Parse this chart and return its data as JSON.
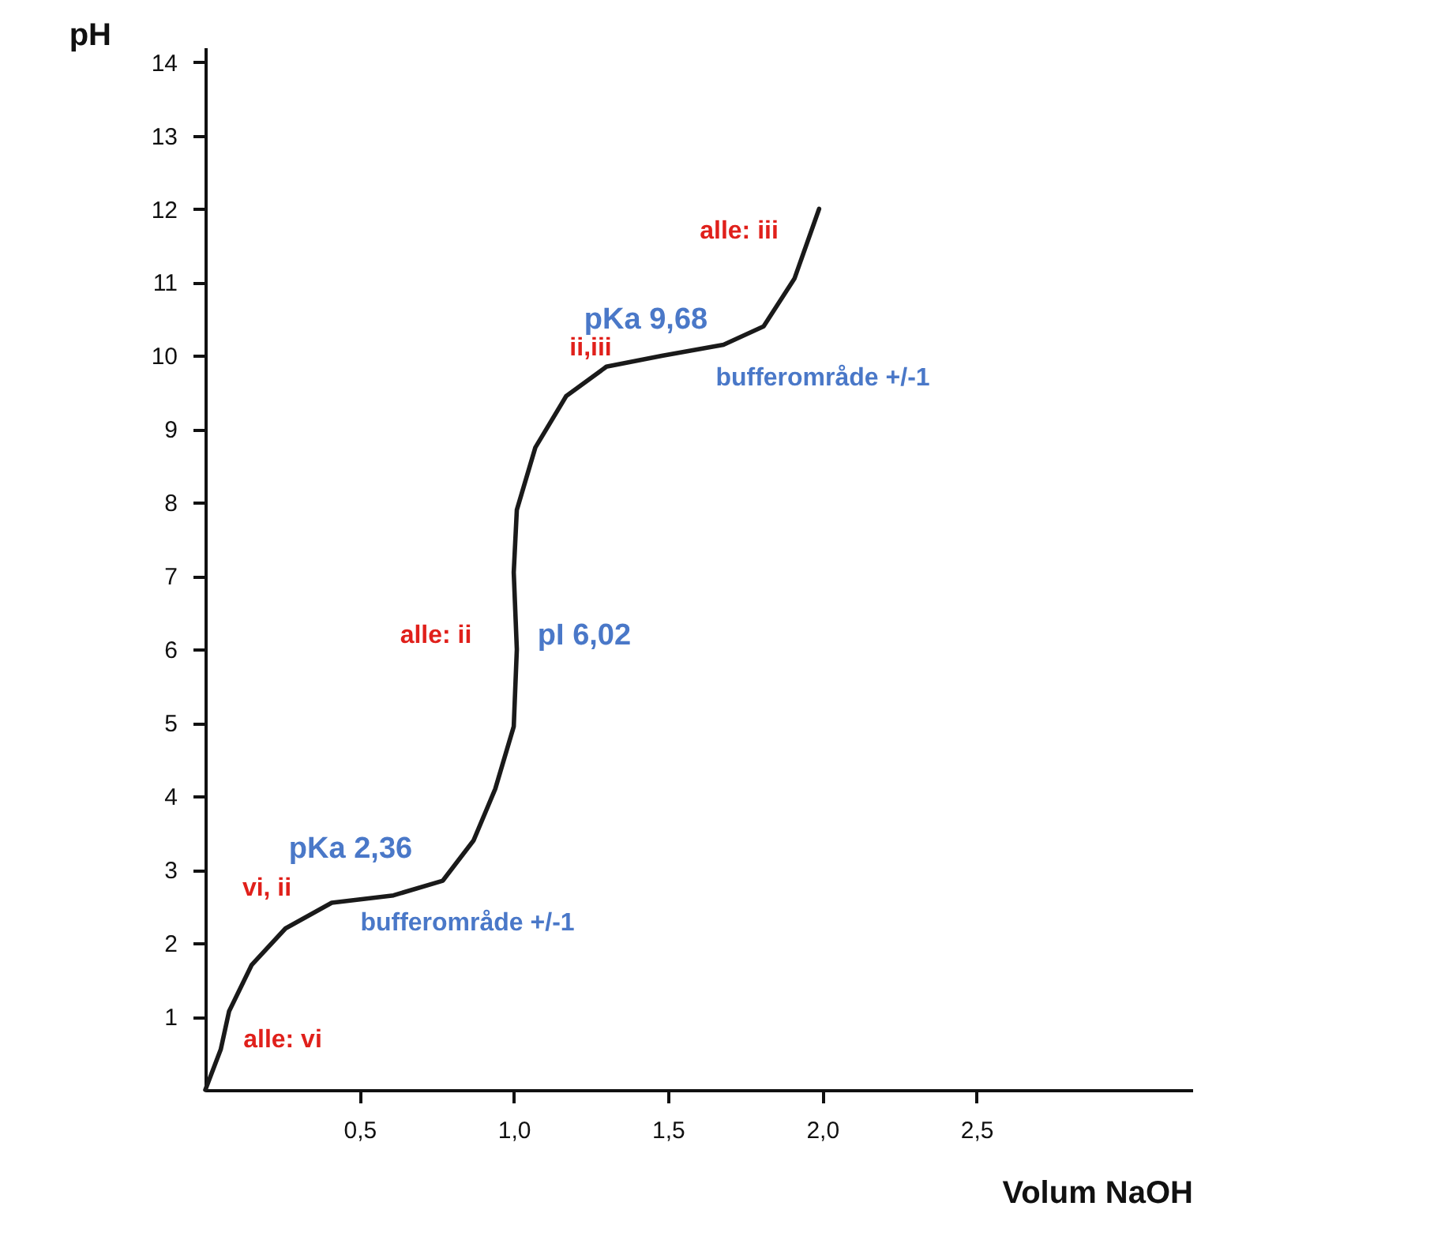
{
  "chart_data": {
    "type": "line",
    "xlabel": "Volum NaOH",
    "ylabel": "pH",
    "xlim": [
      0,
      3.2
    ],
    "ylim": [
      0,
      14.2
    ],
    "xticks": [
      {
        "value": 0.5,
        "label": "0,5"
      },
      {
        "value": 1,
        "label": "1,0"
      },
      {
        "value": 1.5,
        "label": "1,5"
      },
      {
        "value": 2,
        "label": "2,0"
      },
      {
        "value": 2.5,
        "label": "2,5"
      }
    ],
    "yticks": [
      1,
      2,
      3,
      4,
      5,
      6,
      7,
      8,
      9,
      10,
      11,
      12,
      13,
      14
    ],
    "grid": false,
    "legend": false,
    "marker": "none",
    "line_style": "solid",
    "series": [
      {
        "color": "#1a1a1a",
        "x": [
          0,
          0.05,
          0.077,
          0.15,
          0.26,
          0.41,
          0.61,
          0.77,
          0.87,
          0.94,
          1.0,
          1.01,
          1.0,
          1.01,
          1.07,
          1.17,
          1.3,
          1.48,
          1.68,
          1.81,
          1.91,
          1.99
        ],
        "values": [
          0,
          0.55,
          1.07,
          1.7,
          2.2,
          2.55,
          2.65,
          2.85,
          3.4,
          4.1,
          4.95,
          6.0,
          7.05,
          7.9,
          8.75,
          9.45,
          9.85,
          10.0,
          10.15,
          10.4,
          11.05,
          12.0
        ]
      }
    ],
    "annotations": [
      "alle: iii",
      "pKa 9,68",
      "ii,iii",
      "bufferområde +/-1",
      "alle: ii",
      "pI 6,02",
      "pKa 2,36",
      "vi, ii",
      "bufferområde +/-1",
      "alle: vi"
    ]
  }
}
